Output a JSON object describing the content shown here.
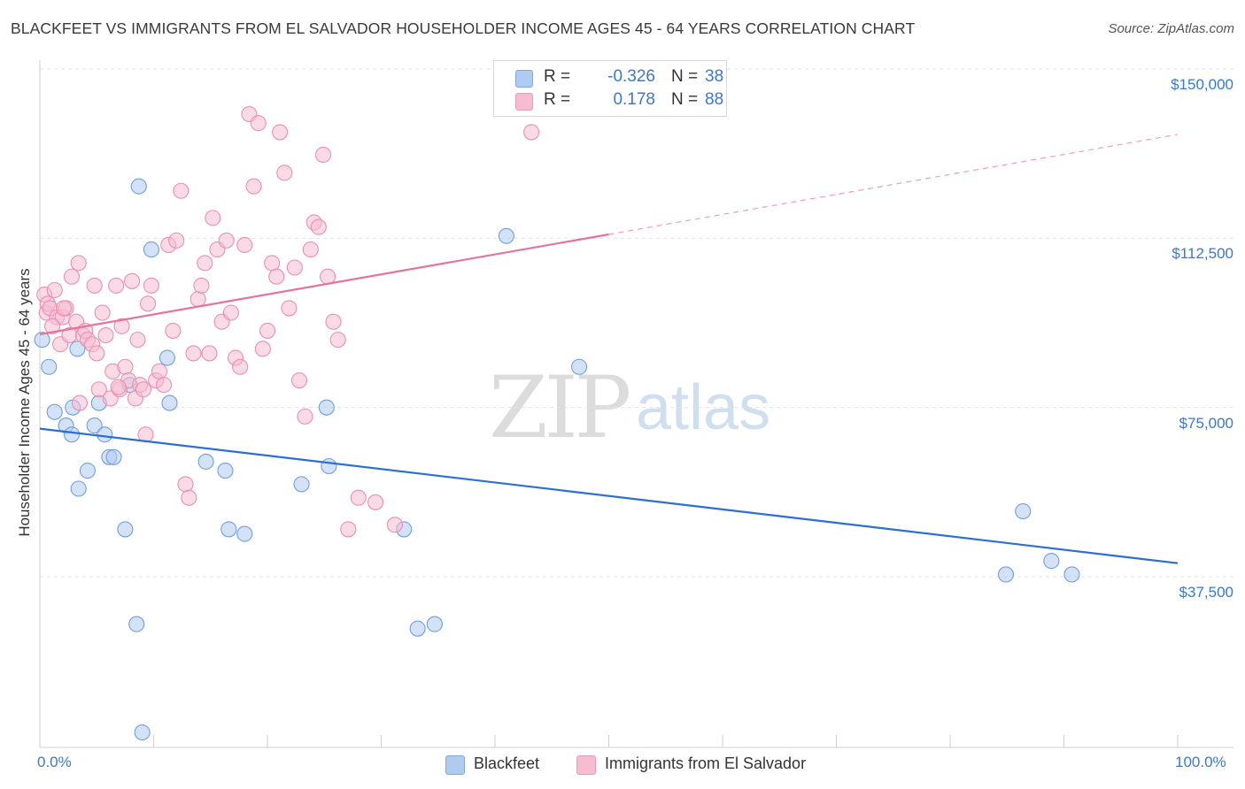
{
  "title": "BLACKFEET VS IMMIGRANTS FROM EL SALVADOR HOUSEHOLDER INCOME AGES 45 - 64 YEARS CORRELATION CHART",
  "source": "Source: ZipAtlas.com",
  "watermark": {
    "zip": "ZIP",
    "atlas": "atlas"
  },
  "stats": [
    {
      "r_label": "R =",
      "r_value": "-0.326",
      "n_label": "N =",
      "n_value": "38",
      "color": "#aecbf0"
    },
    {
      "r_label": "R =",
      "r_value": "0.178",
      "n_label": "N =",
      "n_value": "88",
      "color": "#f6bccf"
    }
  ],
  "legend": [
    {
      "label": "Blackfeet",
      "color": "#aecbf0"
    },
    {
      "label": "Immigrants from El Salvador",
      "color": "#f6bccf"
    }
  ],
  "chart_data": {
    "type": "scatter",
    "title": "BLACKFEET VS IMMIGRANTS FROM EL SALVADOR HOUSEHOLDER INCOME AGES 45 - 64 YEARS CORRELATION CHART",
    "xlabel": "",
    "ylabel": "Householder Income Ages 45 - 64 years",
    "xlim": [
      0,
      100
    ],
    "ylim": [
      0,
      155000
    ],
    "x_tick_labels": [
      {
        "value": 0,
        "label": "0.0%"
      },
      {
        "value": 100,
        "label": "100.0%"
      }
    ],
    "y_ticks": [
      {
        "value": 37500,
        "label": "$37,500"
      },
      {
        "value": 75000,
        "label": "$75,000"
      },
      {
        "value": 112500,
        "label": "$112,500"
      },
      {
        "value": 150000,
        "label": "$150,000"
      }
    ],
    "grid": true,
    "series": [
      {
        "name": "Blackfeet",
        "color": "#aecbf0",
        "stroke": "#6f9fe0",
        "line_color": "#2a6fd4",
        "trend": {
          "x0": 0,
          "y0": 70300,
          "x1": 100,
          "y1": 40500,
          "dashed_from": null
        },
        "points": [
          [
            0.8,
            84000
          ],
          [
            1.3,
            74000
          ],
          [
            2.3,
            71000
          ],
          [
            2.9,
            75000
          ],
          [
            2.8,
            69000
          ],
          [
            3.3,
            88000
          ],
          [
            3.4,
            57000
          ],
          [
            4.2,
            61000
          ],
          [
            4.8,
            71000
          ],
          [
            5.2,
            76000
          ],
          [
            5.7,
            69000
          ],
          [
            6.1,
            64000
          ],
          [
            6.5,
            64000
          ],
          [
            7.5,
            48000
          ],
          [
            7.9,
            80000
          ],
          [
            8.5,
            27000
          ],
          [
            8.7,
            124000
          ],
          [
            9.0,
            3000
          ],
          [
            9.8,
            110000
          ],
          [
            11.2,
            86000
          ],
          [
            11.4,
            76000
          ],
          [
            14.6,
            63000
          ],
          [
            16.3,
            61000
          ],
          [
            16.6,
            48000
          ],
          [
            18.0,
            47000
          ],
          [
            23.0,
            58000
          ],
          [
            25.2,
            75000
          ],
          [
            25.4,
            62000
          ],
          [
            32.0,
            48000
          ],
          [
            33.2,
            26000
          ],
          [
            34.7,
            27000
          ],
          [
            41.0,
            113000
          ],
          [
            47.4,
            84000
          ],
          [
            84.9,
            38000
          ],
          [
            86.4,
            52000
          ],
          [
            88.9,
            41000
          ],
          [
            90.7,
            38000
          ],
          [
            0.2,
            90000
          ]
        ]
      },
      {
        "name": "Immigrants from El Salvador",
        "color": "#f6bccf",
        "stroke": "#ea8fb0",
        "line_color": "#e5739a",
        "trend": {
          "x0": 0,
          "y0": 91200,
          "x1": 100,
          "y1": 135500,
          "dashed_from": 50
        },
        "points": [
          [
            0.4,
            100000
          ],
          [
            0.6,
            96000
          ],
          [
            0.7,
            98000
          ],
          [
            0.9,
            97000
          ],
          [
            1.3,
            101000
          ],
          [
            1.5,
            95000
          ],
          [
            1.8,
            89000
          ],
          [
            2.0,
            95000
          ],
          [
            2.3,
            97000
          ],
          [
            2.6,
            91000
          ],
          [
            2.8,
            104000
          ],
          [
            3.2,
            94000
          ],
          [
            3.4,
            107000
          ],
          [
            3.5,
            76000
          ],
          [
            3.8,
            91000
          ],
          [
            4.0,
            92000
          ],
          [
            4.2,
            90000
          ],
          [
            4.6,
            89000
          ],
          [
            4.8,
            102000
          ],
          [
            5.0,
            87000
          ],
          [
            5.2,
            79000
          ],
          [
            5.5,
            96000
          ],
          [
            5.8,
            91000
          ],
          [
            6.2,
            77000
          ],
          [
            6.4,
            83000
          ],
          [
            6.7,
            102000
          ],
          [
            7.0,
            79000
          ],
          [
            7.2,
            93000
          ],
          [
            7.5,
            84000
          ],
          [
            7.8,
            81000
          ],
          [
            8.1,
            103000
          ],
          [
            8.4,
            77000
          ],
          [
            8.6,
            90000
          ],
          [
            8.8,
            80000
          ],
          [
            9.1,
            79000
          ],
          [
            9.3,
            69000
          ],
          [
            9.5,
            98000
          ],
          [
            9.8,
            102000
          ],
          [
            10.2,
            81000
          ],
          [
            10.5,
            83000
          ],
          [
            10.9,
            80000
          ],
          [
            11.3,
            111000
          ],
          [
            11.7,
            92000
          ],
          [
            12.0,
            112000
          ],
          [
            12.4,
            123000
          ],
          [
            12.8,
            58000
          ],
          [
            13.1,
            55000
          ],
          [
            13.5,
            87000
          ],
          [
            13.9,
            99000
          ],
          [
            14.2,
            102000
          ],
          [
            14.5,
            107000
          ],
          [
            14.9,
            87000
          ],
          [
            15.2,
            117000
          ],
          [
            15.6,
            110000
          ],
          [
            16.0,
            94000
          ],
          [
            16.4,
            112000
          ],
          [
            16.8,
            96000
          ],
          [
            17.2,
            86000
          ],
          [
            17.6,
            84000
          ],
          [
            18.0,
            111000
          ],
          [
            18.4,
            140000
          ],
          [
            18.8,
            124000
          ],
          [
            19.2,
            138000
          ],
          [
            19.6,
            88000
          ],
          [
            20.0,
            92000
          ],
          [
            20.4,
            107000
          ],
          [
            20.8,
            104000
          ],
          [
            21.1,
            136000
          ],
          [
            21.5,
            127000
          ],
          [
            21.9,
            97000
          ],
          [
            22.4,
            106000
          ],
          [
            22.8,
            81000
          ],
          [
            23.3,
            73000
          ],
          [
            23.8,
            110000
          ],
          [
            24.1,
            116000
          ],
          [
            24.5,
            115000
          ],
          [
            24.9,
            131000
          ],
          [
            25.3,
            104000
          ],
          [
            25.8,
            94000
          ],
          [
            26.2,
            90000
          ],
          [
            27.1,
            48000
          ],
          [
            28.0,
            55000
          ],
          [
            29.5,
            54000
          ],
          [
            31.2,
            49000
          ],
          [
            43.2,
            136000
          ],
          [
            2.1,
            97000
          ],
          [
            1.1,
            93000
          ],
          [
            6.9,
            79500
          ]
        ]
      }
    ]
  }
}
